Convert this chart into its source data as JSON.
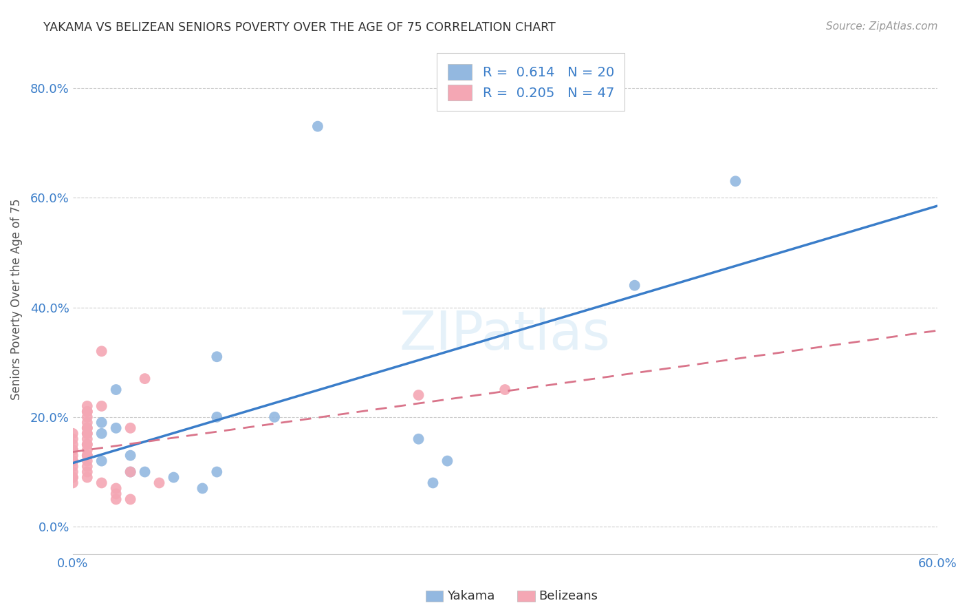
{
  "title": "YAKAMA VS BELIZEAN SENIORS POVERTY OVER THE AGE OF 75 CORRELATION CHART",
  "source": "Source: ZipAtlas.com",
  "xlabel": "",
  "ylabel": "Seniors Poverty Over the Age of 75",
  "xlim": [
    0.0,
    0.6
  ],
  "ylim": [
    -0.05,
    0.88
  ],
  "ytick_labels": [
    "0.0%",
    "20.0%",
    "40.0%",
    "60.0%",
    "80.0%"
  ],
  "ytick_vals": [
    0.0,
    0.2,
    0.4,
    0.6,
    0.8
  ],
  "xtick_vals": [
    0.0,
    0.1,
    0.2,
    0.3,
    0.4,
    0.5,
    0.6
  ],
  "legend_r_yakama": "0.614",
  "legend_n_yakama": "20",
  "legend_r_belizean": "0.205",
  "legend_n_belizean": "47",
  "yakama_color": "#93b8e0",
  "belizean_color": "#f4a7b4",
  "yakama_line_color": "#3a7dc9",
  "belizean_line_color": "#d9748a",
  "legend_text_color": "#3a7dc9",
  "tick_color": "#3a7dc9",
  "watermark_text": "ZIPatlas",
  "background_color": "#ffffff",
  "grid_color": "#cccccc",
  "yakama_x": [
    0.02,
    0.02,
    0.02,
    0.03,
    0.03,
    0.04,
    0.04,
    0.05,
    0.07,
    0.09,
    0.1,
    0.1,
    0.1,
    0.14,
    0.17,
    0.24,
    0.25,
    0.26,
    0.39,
    0.46
  ],
  "yakama_y": [
    0.19,
    0.17,
    0.12,
    0.25,
    0.18,
    0.13,
    0.1,
    0.1,
    0.09,
    0.07,
    0.31,
    0.2,
    0.1,
    0.2,
    0.73,
    0.16,
    0.08,
    0.12,
    0.44,
    0.63
  ],
  "belizean_x": [
    0.0,
    0.0,
    0.0,
    0.0,
    0.0,
    0.0,
    0.0,
    0.0,
    0.0,
    0.0,
    0.0,
    0.0,
    0.0,
    0.0,
    0.0,
    0.01,
    0.01,
    0.01,
    0.01,
    0.01,
    0.01,
    0.01,
    0.01,
    0.01,
    0.01,
    0.01,
    0.01,
    0.01,
    0.01,
    0.01,
    0.01,
    0.01,
    0.01,
    0.01,
    0.02,
    0.02,
    0.02,
    0.03,
    0.03,
    0.03,
    0.04,
    0.04,
    0.04,
    0.05,
    0.06,
    0.24,
    0.3
  ],
  "belizean_y": [
    0.17,
    0.16,
    0.15,
    0.14,
    0.14,
    0.13,
    0.12,
    0.12,
    0.12,
    0.12,
    0.11,
    0.1,
    0.09,
    0.09,
    0.08,
    0.22,
    0.21,
    0.21,
    0.2,
    0.19,
    0.18,
    0.18,
    0.17,
    0.17,
    0.16,
    0.15,
    0.15,
    0.14,
    0.13,
    0.13,
    0.12,
    0.11,
    0.1,
    0.09,
    0.32,
    0.22,
    0.08,
    0.07,
    0.06,
    0.05,
    0.18,
    0.1,
    0.05,
    0.27,
    0.08,
    0.24,
    0.25
  ]
}
